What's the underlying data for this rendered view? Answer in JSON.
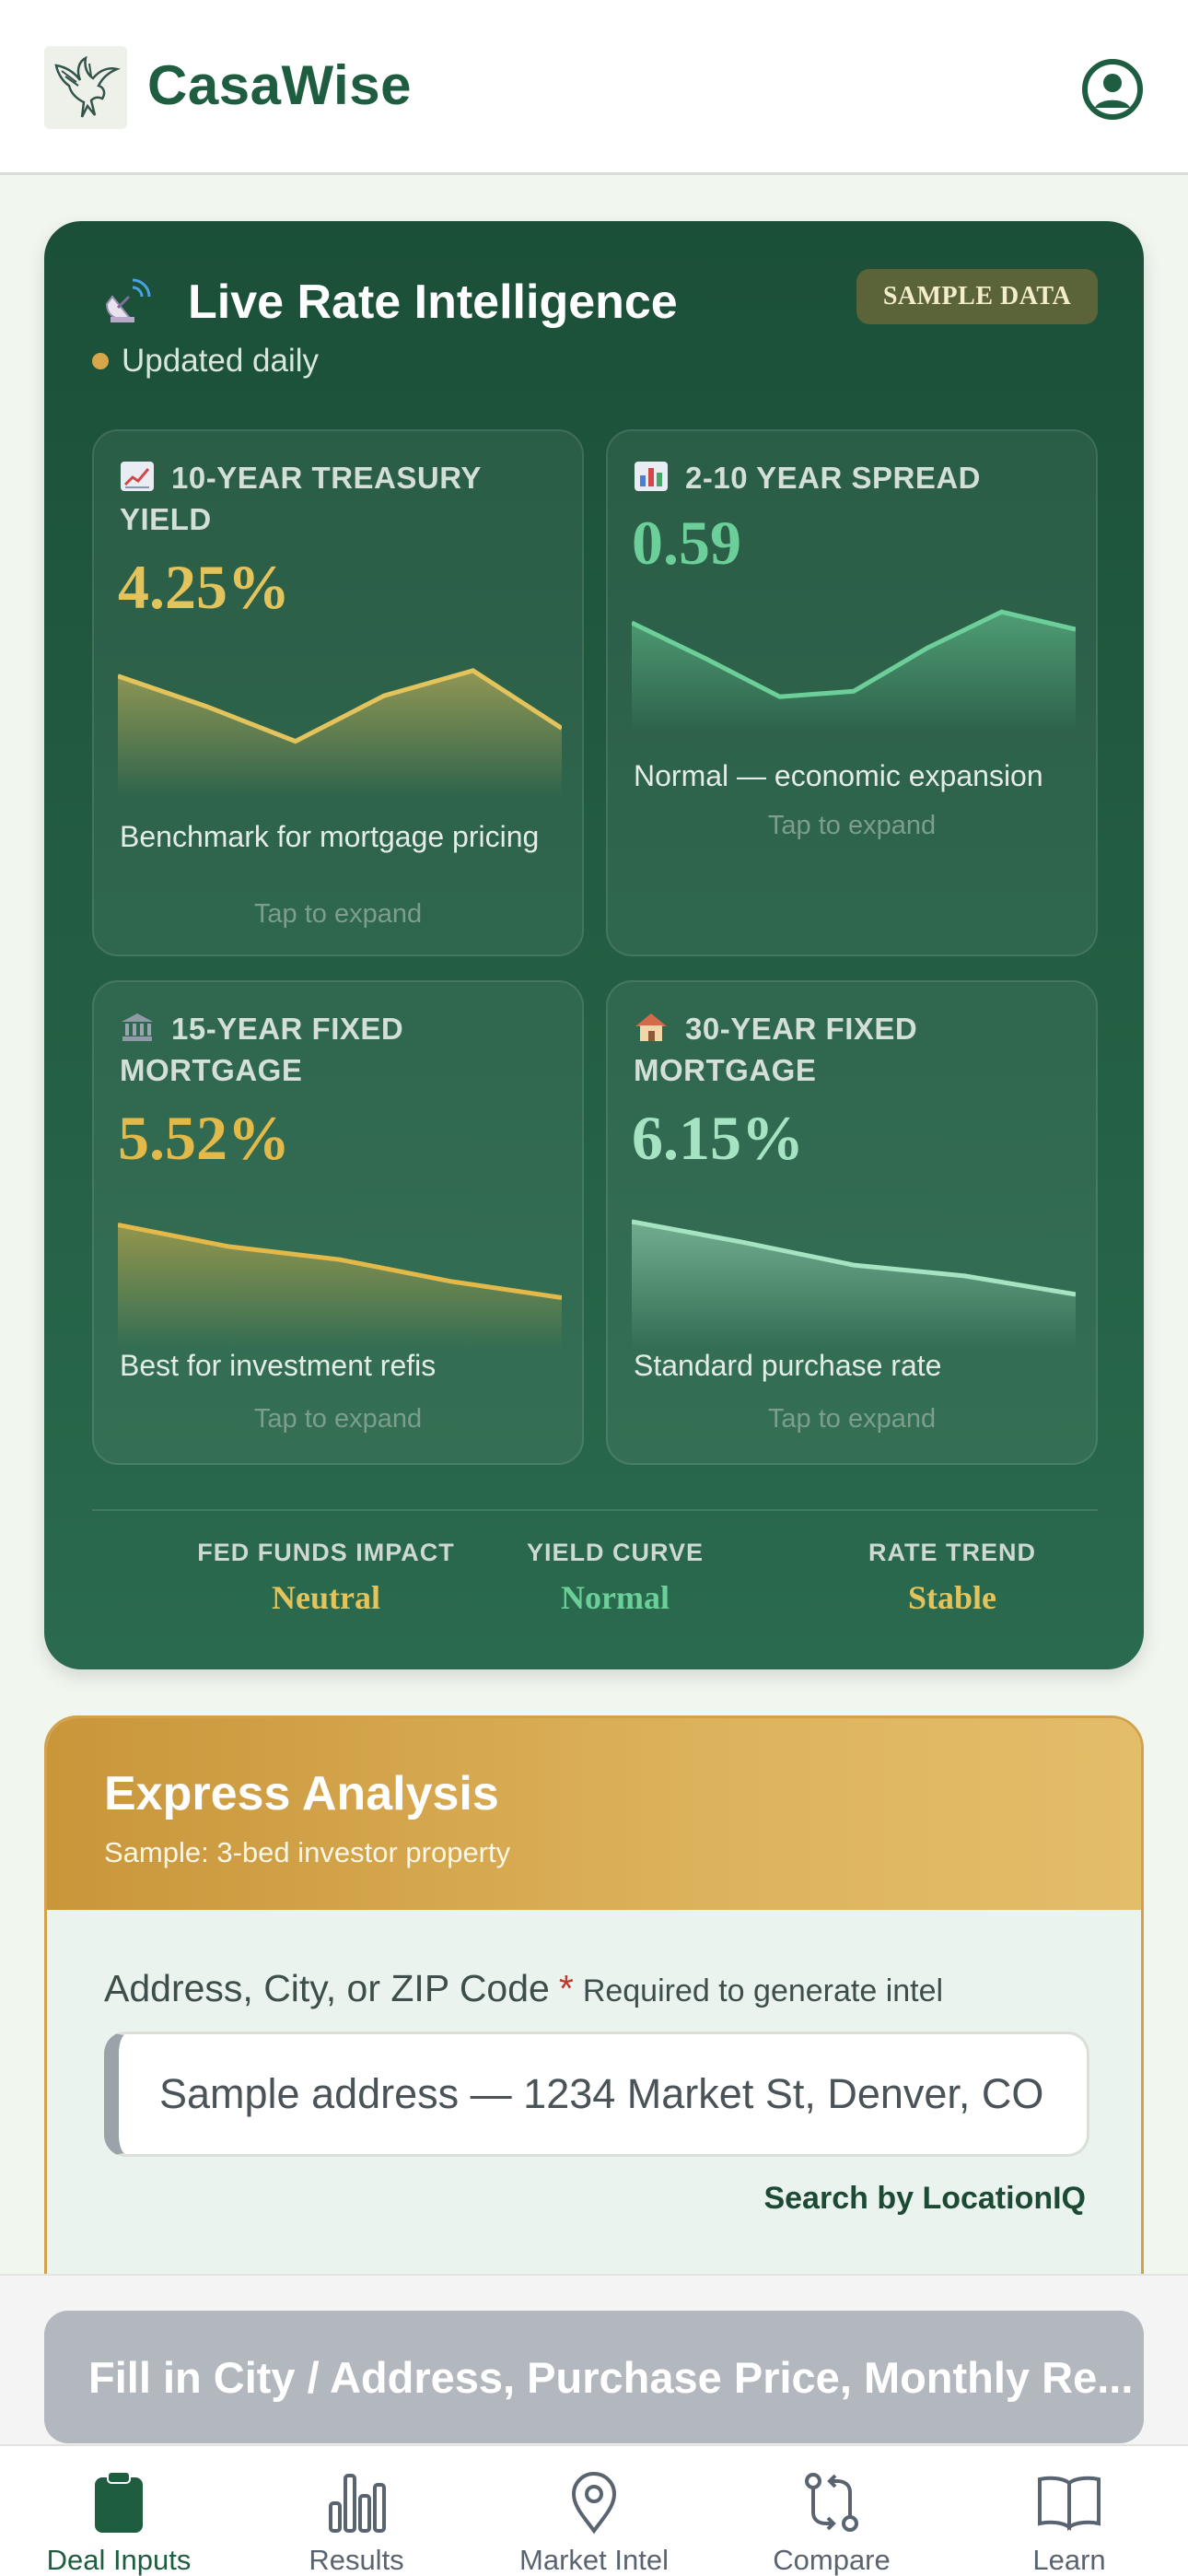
{
  "header": {
    "brand": "CasaWise",
    "logo_icon": "eagle-logo-icon",
    "profile_icon": "user-circle-icon"
  },
  "rates": {
    "title": "Live Rate Intelligence",
    "badge": "SAMPLE DATA",
    "updated": "Updated daily",
    "tiles": [
      {
        "icon": "chart-up-icon",
        "label": "10-YEAR TREASURY YIELD",
        "value": "4.25%",
        "desc": "Benchmark for mortgage pricing",
        "expand": "Tap to expand",
        "color": "#e3c35c",
        "trend": [
          0.9,
          0.62,
          0.3,
          0.72,
          0.95,
          0.42
        ]
      },
      {
        "icon": "bar-chart-icon",
        "label": "2-10 YEAR SPREAD",
        "value": "0.59",
        "desc": "Normal — economic expansion",
        "expand": "Tap to expand",
        "color": "#6ccf9a",
        "trend": [
          0.78,
          0.45,
          0.1,
          0.15,
          0.55,
          0.88,
          0.72
        ]
      },
      {
        "icon": "bank-icon",
        "label": "15-YEAR FIXED MORTGAGE",
        "value": "5.52%",
        "desc": "Best for investment refis",
        "expand": "Tap to expand",
        "color": "#e3b94a",
        "trend": [
          0.92,
          0.72,
          0.6,
          0.4,
          0.25
        ]
      },
      {
        "icon": "house-icon",
        "label": "30-YEAR FIXED MORTGAGE",
        "value": "6.15%",
        "desc": "Standard purchase rate",
        "expand": "Tap to expand",
        "color": "#a6e3c3",
        "trend": [
          0.95,
          0.76,
          0.55,
          0.45,
          0.28
        ]
      }
    ],
    "indicators": [
      {
        "label": "FED FUNDS IMPACT",
        "value": "Neutral",
        "color": "#e3c35c"
      },
      {
        "label": "YIELD CURVE",
        "value": "Normal",
        "color": "#6ccf9a"
      },
      {
        "label": "RATE TREND",
        "value": "Stable",
        "color": "#e3c35c"
      }
    ]
  },
  "express": {
    "title": "Express Analysis",
    "subtitle": "Sample: 3-bed investor property",
    "address_label": "Address, City, or ZIP Code",
    "required_star": "*",
    "required_hint": "Required to generate intel",
    "address_placeholder": "Sample address — 1234 Market St, Denver, CO",
    "search_by": "Search by LocationIQ"
  },
  "cta": {
    "label": "Fill in City / Address, Purchase Price, Monthly Re..."
  },
  "tabs": [
    {
      "label": "Deal Inputs",
      "icon": "clipboard-icon",
      "active": true
    },
    {
      "label": "Results",
      "icon": "bar-chart-icon",
      "active": false
    },
    {
      "label": "Market Intel",
      "icon": "map-pin-icon",
      "active": false
    },
    {
      "label": "Compare",
      "icon": "compare-arrows-icon",
      "active": false
    },
    {
      "label": "Learn",
      "icon": "book-icon",
      "active": false
    }
  ]
}
